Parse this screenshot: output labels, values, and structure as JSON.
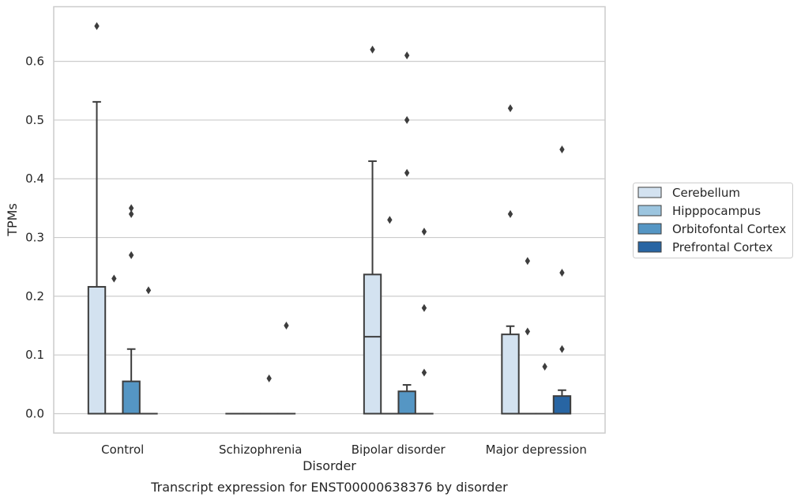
{
  "chart_data": {
    "type": "box",
    "caption": "Transcript expression for ENST00000638376 by disorder",
    "xlabel": "Disorder",
    "ylabel": "TPMs",
    "ylim": [
      -0.033,
      0.693
    ],
    "yticks": [
      "0.0",
      "0.1",
      "0.2",
      "0.3",
      "0.4",
      "0.5",
      "0.6"
    ],
    "grid": "horizontal",
    "legend_position": "right",
    "categories": [
      "Control",
      "Schizophrenia",
      "Bipolar disorder",
      "Major depression"
    ],
    "series": [
      {
        "name": "Cerebellum",
        "color": "#d3e2f0"
      },
      {
        "name": "Hipppocampus",
        "color": "#9cc5df"
      },
      {
        "name": "Orbitofontal Cortex",
        "color": "#5596c4"
      },
      {
        "name": "Prefrontal Cortex",
        "color": "#2865a3"
      }
    ],
    "boxes": [
      [
        {
          "q1": 0,
          "median": 0,
          "q3": 0.216,
          "whislo": 0,
          "whishi": 0.531,
          "fliers": [
            0.66
          ]
        },
        {
          "q1": 0,
          "median": 0,
          "q3": 0,
          "whislo": 0,
          "whishi": 0,
          "fliers": [
            0.23
          ]
        },
        {
          "q1": 0,
          "median": 0,
          "q3": 0.055,
          "whislo": 0,
          "whishi": 0.11,
          "fliers": [
            0.27,
            0.34,
            0.35
          ]
        },
        {
          "q1": 0,
          "median": 0,
          "q3": 0,
          "whislo": 0,
          "whishi": 0,
          "fliers": [
            0.21
          ]
        }
      ],
      [
        {
          "q1": 0,
          "median": 0,
          "q3": 0,
          "whislo": 0,
          "whishi": 0,
          "fliers": []
        },
        {
          "q1": 0,
          "median": 0,
          "q3": 0,
          "whislo": 0,
          "whishi": 0,
          "fliers": []
        },
        {
          "q1": 0,
          "median": 0,
          "q3": 0,
          "whislo": 0,
          "whishi": 0,
          "fliers": [
            0.06
          ]
        },
        {
          "q1": 0,
          "median": 0,
          "q3": 0,
          "whislo": 0,
          "whishi": 0,
          "fliers": [
            0.15
          ]
        }
      ],
      [
        {
          "q1": 0,
          "median": 0.131,
          "q3": 0.237,
          "whislo": 0,
          "whishi": 0.43,
          "fliers": [
            0.62
          ]
        },
        {
          "q1": 0,
          "median": 0,
          "q3": 0,
          "whislo": 0,
          "whishi": 0,
          "fliers": [
            0.33
          ]
        },
        {
          "q1": 0,
          "median": 0,
          "q3": 0.038,
          "whislo": 0,
          "whishi": 0.049,
          "fliers": [
            0.41,
            0.5,
            0.61
          ]
        },
        {
          "q1": 0,
          "median": 0,
          "q3": 0,
          "whislo": 0,
          "whishi": 0,
          "fliers": [
            0.07,
            0.18,
            0.31
          ]
        }
      ],
      [
        {
          "q1": 0,
          "median": 0,
          "q3": 0.135,
          "whislo": 0,
          "whishi": 0.149,
          "fliers": [
            0.34,
            0.52
          ]
        },
        {
          "q1": 0,
          "median": 0,
          "q3": 0,
          "whislo": 0,
          "whishi": 0,
          "fliers": [
            0.14,
            0.26
          ]
        },
        {
          "q1": 0,
          "median": 0,
          "q3": 0,
          "whislo": 0,
          "whishi": 0,
          "fliers": [
            0.08
          ]
        },
        {
          "q1": 0,
          "median": 0,
          "q3": 0.03,
          "whislo": 0,
          "whishi": 0.04,
          "fliers": [
            0.11,
            0.24,
            0.45
          ]
        }
      ]
    ]
  }
}
